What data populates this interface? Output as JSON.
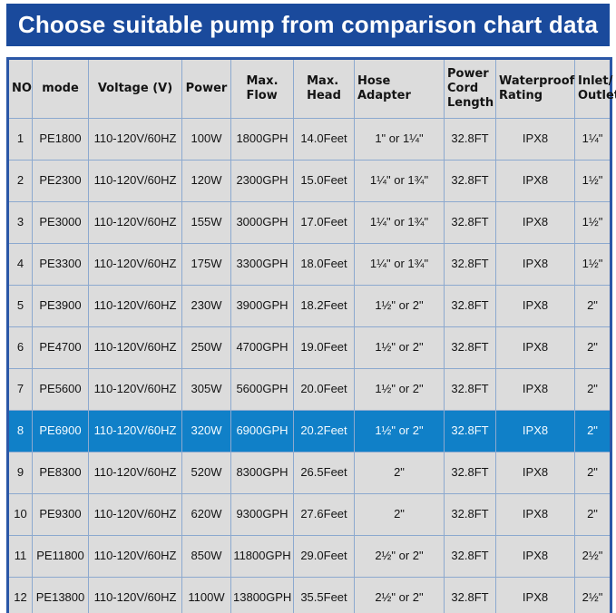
{
  "title": "Choose suitable pump from comparison chart data",
  "colors": {
    "title_bar_bg": "#1a4a9c",
    "title_text": "#ffffff",
    "cell_bg": "#dcdcdc",
    "highlight_row_bg": "#1080c8",
    "highlight_row_text": "#f4fbff",
    "outer_border": "#2b57a7",
    "inner_border": "#8ca9cf"
  },
  "chart_data": {
    "type": "table",
    "title": "Choose suitable pump from comparison chart data",
    "columns": [
      "NO",
      "mode",
      "Voltage (V)",
      "Power",
      "Max.\nFlow",
      "Max.\nHead",
      "Hose Adapter",
      "Power\nCord\nLength",
      "Waterproof\nRating",
      "Inlet/\nOutlet"
    ],
    "column_keys": [
      "no",
      "model",
      "voltage",
      "power",
      "max-flow",
      "max-head",
      "hose-adapter",
      "power-cord-length",
      "waterproof-rating",
      "inlet-outlet"
    ],
    "highlighted_row_index": 7,
    "rows": [
      [
        "1",
        "PE1800",
        "110-120V/60HZ",
        "100W",
        "1800GPH",
        "14.0Feet",
        "1\" or 1¼\"",
        "32.8FT",
        "IPX8",
        "1¼\""
      ],
      [
        "2",
        "PE2300",
        "110-120V/60HZ",
        "120W",
        "2300GPH",
        "15.0Feet",
        "1¼\" or 1¾\"",
        "32.8FT",
        "IPX8",
        "1½\""
      ],
      [
        "3",
        "PE3000",
        "110-120V/60HZ",
        "155W",
        "3000GPH",
        "17.0Feet",
        "1¼\" or 1¾\"",
        "32.8FT",
        "IPX8",
        "1½\""
      ],
      [
        "4",
        "PE3300",
        "110-120V/60HZ",
        "175W",
        "3300GPH",
        "18.0Feet",
        "1¼\" or 1¾\"",
        "32.8FT",
        "IPX8",
        "1½\""
      ],
      [
        "5",
        "PE3900",
        "110-120V/60HZ",
        "230W",
        "3900GPH",
        "18.2Feet",
        "1½\" or 2\"",
        "32.8FT",
        "IPX8",
        "2\""
      ],
      [
        "6",
        "PE4700",
        "110-120V/60HZ",
        "250W",
        "4700GPH",
        "19.0Feet",
        "1½\" or 2\"",
        "32.8FT",
        "IPX8",
        "2\""
      ],
      [
        "7",
        "PE5600",
        "110-120V/60HZ",
        "305W",
        "5600GPH",
        "20.0Feet",
        "1½\" or 2\"",
        "32.8FT",
        "IPX8",
        "2\""
      ],
      [
        "8",
        "PE6900",
        "110-120V/60HZ",
        "320W",
        "6900GPH",
        "20.2Feet",
        "1½\" or 2\"",
        "32.8FT",
        "IPX8",
        "2\""
      ],
      [
        "9",
        "PE8300",
        "110-120V/60HZ",
        "520W",
        "8300GPH",
        "26.5Feet",
        "2\"",
        "32.8FT",
        "IPX8",
        "2\""
      ],
      [
        "10",
        "PE9300",
        "110-120V/60HZ",
        "620W",
        "9300GPH",
        "27.6Feet",
        "2\"",
        "32.8FT",
        "IPX8",
        "2\""
      ],
      [
        "11",
        "PE11800",
        "110-120V/60HZ",
        "850W",
        "11800GPH",
        "29.0Feet",
        "2½\" or 2\"",
        "32.8FT",
        "IPX8",
        "2½\""
      ],
      [
        "12",
        "PE13800",
        "110-120V/60HZ",
        "1100W",
        "13800GPH",
        "35.5Feet",
        "2½\" or 2\"",
        "32.8FT",
        "IPX8",
        "2½\""
      ]
    ]
  }
}
